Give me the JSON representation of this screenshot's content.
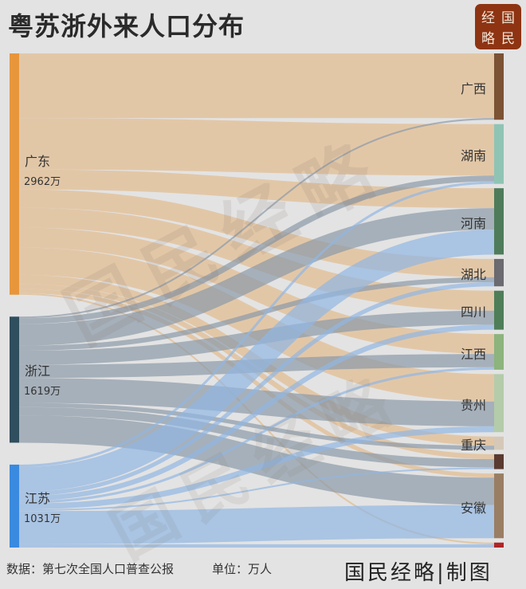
{
  "title": "粤苏浙外来人口分布",
  "logo": {
    "chars": [
      "经",
      "国",
      "略",
      "民"
    ],
    "color": "#8e3412"
  },
  "watermark": "国民经略",
  "footer": {
    "source": "数据：第七次全国人口普查公报",
    "unit": "单位：万人",
    "credit": "国民经略|制图"
  },
  "diagram": {
    "type": "sankey",
    "sources": [
      {
        "id": "gd",
        "name": "广东",
        "total": "2962万",
        "color": "#e8963c",
        "link_color": "#e2c5a3"
      },
      {
        "id": "zj",
        "name": "浙江",
        "total": "1619万",
        "color": "#2f4e5e",
        "link_color": "#8b9aa8"
      },
      {
        "id": "js",
        "name": "江苏",
        "total": "1031万",
        "color": "#3a8ae0",
        "link_color": "#92b6e2"
      }
    ],
    "targets": [
      {
        "id": "gx",
        "name": "广西",
        "color": "#7b5234"
      },
      {
        "id": "hn",
        "name": "湖南",
        "color": "#8fc4b4"
      },
      {
        "id": "hen",
        "name": "河南",
        "color": "#4e7c5a"
      },
      {
        "id": "hb",
        "name": "湖北",
        "color": "#6a6a70"
      },
      {
        "id": "sc",
        "name": "四川",
        "color": "#4e7e58"
      },
      {
        "id": "jx",
        "name": "江西",
        "color": "#8cb47c"
      },
      {
        "id": "gz",
        "name": "贵州",
        "color": "#b4ccaa"
      },
      {
        "id": "cq",
        "name": "重庆",
        "color": "#d6c8b8"
      },
      {
        "id": "u1",
        "name": "",
        "color": "#5a3a30"
      },
      {
        "id": "ah",
        "name": "安徽",
        "color": "#9a7e64"
      },
      {
        "id": "u2",
        "name": "",
        "color": "#b02424"
      }
    ],
    "links": [
      {
        "s": "gd",
        "t": "gx",
        "v": 780
      },
      {
        "s": "gd",
        "t": "hn",
        "v": 620
      },
      {
        "s": "gd",
        "t": "hen",
        "v": 240
      },
      {
        "s": "gd",
        "t": "hb",
        "v": 220
      },
      {
        "s": "gd",
        "t": "sc",
        "v": 240
      },
      {
        "s": "gd",
        "t": "jx",
        "v": 240
      },
      {
        "s": "gd",
        "t": "gz",
        "v": 330
      },
      {
        "s": "gd",
        "t": "cq",
        "v": 110
      },
      {
        "s": "gd",
        "t": "u1",
        "v": 60
      },
      {
        "s": "gd",
        "t": "ah",
        "v": 50
      },
      {
        "s": "gd",
        "t": "u2",
        "v": 20
      },
      {
        "s": "zj",
        "t": "gx",
        "v": 20
      },
      {
        "s": "zj",
        "t": "hn",
        "v": 70
      },
      {
        "s": "zj",
        "t": "hen",
        "v": 260
      },
      {
        "s": "zj",
        "t": "hb",
        "v": 60
      },
      {
        "s": "zj",
        "t": "sc",
        "v": 170
      },
      {
        "s": "zj",
        "t": "jx",
        "v": 160
      },
      {
        "s": "zj",
        "t": "gz",
        "v": 300
      },
      {
        "s": "zj",
        "t": "cq",
        "v": 50
      },
      {
        "s": "zj",
        "t": "u1",
        "v": 100
      },
      {
        "s": "zj",
        "t": "ah",
        "v": 330
      },
      {
        "s": "js",
        "t": "hn",
        "v": 30
      },
      {
        "s": "js",
        "t": "hen",
        "v": 300
      },
      {
        "s": "js",
        "t": "hb",
        "v": 50
      },
      {
        "s": "js",
        "t": "sc",
        "v": 60
      },
      {
        "s": "js",
        "t": "jx",
        "v": 30
      },
      {
        "s": "js",
        "t": "gz",
        "v": 70
      },
      {
        "s": "js",
        "t": "u1",
        "v": 20
      },
      {
        "s": "js",
        "t": "ah",
        "v": 400
      },
      {
        "s": "js",
        "t": "u2",
        "v": 40
      }
    ]
  }
}
